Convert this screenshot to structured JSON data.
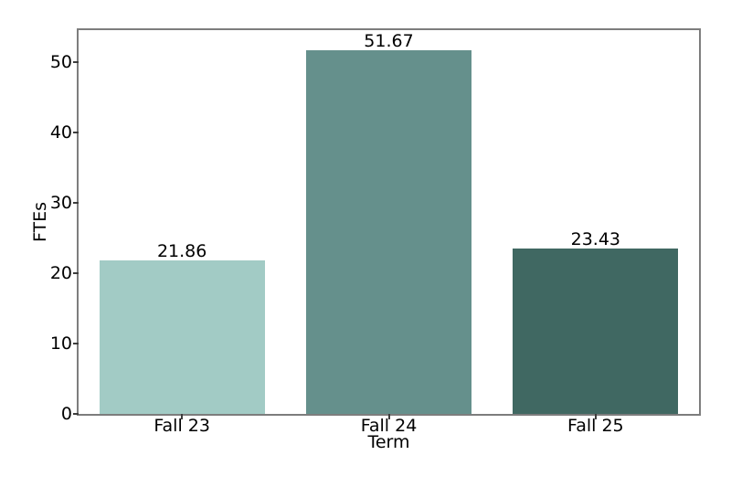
{
  "figure": {
    "background": "#ffffff"
  },
  "chart_data": {
    "type": "bar",
    "title": "",
    "xlabel": "Term",
    "ylabel": "FTEs",
    "categories": [
      "Fall 23",
      "Fall 24",
      "Fall 25"
    ],
    "values": [
      21.86,
      51.67,
      23.43
    ],
    "bar_labels": [
      "21.86",
      "51.67",
      "23.43"
    ],
    "bar_colors": [
      "#a2cbc5",
      "#65908c",
      "#406862"
    ],
    "yticks": [
      0,
      10,
      20,
      30,
      40,
      50
    ],
    "ylim": [
      0,
      54.5
    ],
    "bar_width_fraction": 0.8,
    "grid": false,
    "legend": false
  },
  "style": {
    "spine_color": "#7d7d7d",
    "tick_color": "#3c3c3c",
    "text_color": "#000000"
  }
}
